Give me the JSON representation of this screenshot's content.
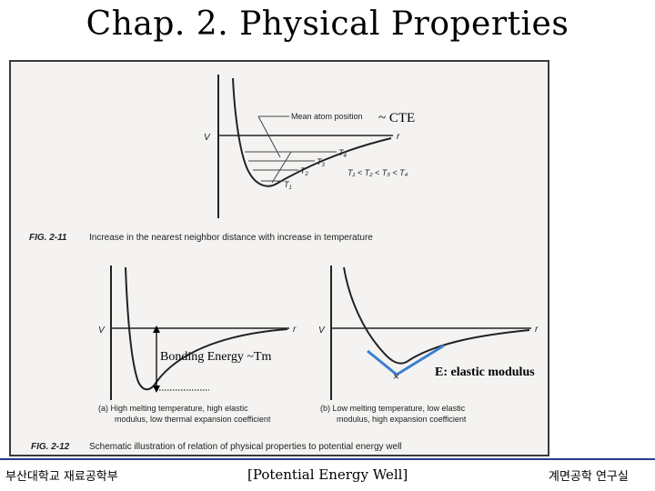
{
  "slide": {
    "title": "Chap. 2. Physical Properties"
  },
  "figure_top": {
    "label_mean": "Mean atom position",
    "label_cte": "~ CTE",
    "label_v": "V",
    "label_r": "r",
    "t1": "T",
    "t1_sub": "1",
    "t2": "T",
    "t2_sub": "2",
    "t3": "T",
    "t3_sub": "3",
    "t4": "T",
    "t4_sub": "4",
    "inequality": "T₁ < T₂ < T₃ < T₄",
    "caption_num": "FIG. 2-11",
    "caption_text": "Increase in the nearest neighbor distance with increase in temperature"
  },
  "figure_bottom": {
    "left_v": "V",
    "left_r": "r",
    "right_v": "V",
    "right_r": "r",
    "bonding_energy": "Bonding Energy ~Tm",
    "elastic_modulus": "E: elastic modulus",
    "caption_a_1": "(a)   High melting temperature, high elastic",
    "caption_a_2": "modulus, low thermal expansion coefficient",
    "caption_b_1": "(b)   Low melting temperature, low elastic",
    "caption_b_2": "modulus, high expansion coefficient",
    "caption_num": "FIG. 2-12",
    "caption_text": "Schematic illustration of relation of physical properties to potential energy well"
  },
  "footer": {
    "left": "부산대학교 재료공학부",
    "center": "[Potential Energy Well]",
    "right": "계면공학 연구실"
  },
  "colors": {
    "accent_blue": "#3a7fd0",
    "footer_line": "#2b3a8a"
  }
}
